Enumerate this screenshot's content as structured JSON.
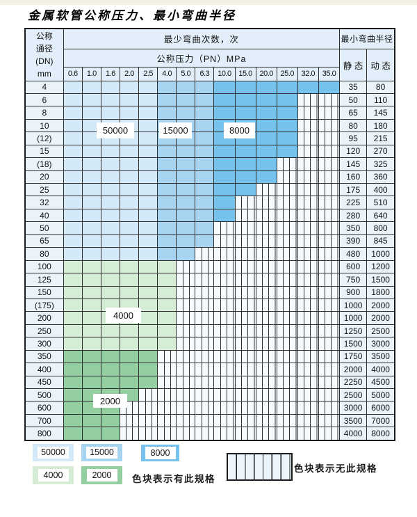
{
  "page": {
    "title": "金属软管公称压力、最小弯曲半径"
  },
  "table": {
    "dn_header": [
      "公称",
      "通径",
      "(DN)",
      "mm"
    ],
    "cycles_header": "最少弯曲次数，次",
    "pressure_header": "公称压力（PN）MPa",
    "radius_header": "最小弯曲半径",
    "static_header": "静 态",
    "dynamic_header": "动 态",
    "pressure_columns": [
      "0.6",
      "1.0",
      "1.6",
      "2.0",
      "2.5",
      "4.0",
      "5.0",
      "6.3",
      "10.0",
      "15.0",
      "20.0",
      "25.0",
      "32.0",
      "35.0"
    ],
    "blue_column_cycles": [
      "50000",
      "50000",
      "50000",
      "50000",
      "50000",
      "15000",
      "15000",
      "15000",
      "8000",
      "8000",
      "8000",
      "8000",
      "8000",
      "8000"
    ],
    "rows": [
      {
        "dn": "4",
        "colored_columns": 14,
        "cycles_group": "blue",
        "static": "35",
        "dynamic": "80"
      },
      {
        "dn": "6",
        "colored_columns": 12,
        "cycles_group": "blue",
        "static": "50",
        "dynamic": "110"
      },
      {
        "dn": "8",
        "colored_columns": 12,
        "cycles_group": "blue",
        "static": "65",
        "dynamic": "145"
      },
      {
        "dn": "10",
        "colored_columns": 12,
        "cycles_group": "blue",
        "static": "80",
        "dynamic": "180"
      },
      {
        "dn": "(12)",
        "colored_columns": 12,
        "cycles_group": "blue",
        "static": "95",
        "dynamic": "215"
      },
      {
        "dn": "15",
        "colored_columns": 12,
        "cycles_group": "blue",
        "static": "120",
        "dynamic": "270"
      },
      {
        "dn": "(18)",
        "colored_columns": 11,
        "cycles_group": "blue",
        "static": "145",
        "dynamic": "325"
      },
      {
        "dn": "20",
        "colored_columns": 11,
        "cycles_group": "blue",
        "static": "160",
        "dynamic": "360"
      },
      {
        "dn": "25",
        "colored_columns": 10,
        "cycles_group": "blue",
        "static": "175",
        "dynamic": "400"
      },
      {
        "dn": "32",
        "colored_columns": 9,
        "cycles_group": "blue",
        "static": "225",
        "dynamic": "510"
      },
      {
        "dn": "40",
        "colored_columns": 9,
        "cycles_group": "blue",
        "static": "280",
        "dynamic": "640"
      },
      {
        "dn": "50",
        "colored_columns": 8,
        "cycles_group": "blue",
        "static": "350",
        "dynamic": "800"
      },
      {
        "dn": "65",
        "colored_columns": 8,
        "cycles_group": "blue",
        "static": "390",
        "dynamic": "845"
      },
      {
        "dn": "80",
        "colored_columns": 7,
        "cycles_group": "blue",
        "static": "480",
        "dynamic": "1000"
      },
      {
        "dn": "100",
        "colored_columns": 6,
        "cycles_group": "4000",
        "static": "600",
        "dynamic": "1200"
      },
      {
        "dn": "125",
        "colored_columns": 6,
        "cycles_group": "4000",
        "static": "750",
        "dynamic": "1500"
      },
      {
        "dn": "150",
        "colored_columns": 6,
        "cycles_group": "4000",
        "static": "900",
        "dynamic": "1800"
      },
      {
        "dn": "(175)",
        "colored_columns": 6,
        "cycles_group": "4000",
        "static": "1000",
        "dynamic": "2000"
      },
      {
        "dn": "200",
        "colored_columns": 6,
        "cycles_group": "4000",
        "static": "1000",
        "dynamic": "2000"
      },
      {
        "dn": "250",
        "colored_columns": 6,
        "cycles_group": "4000",
        "static": "1250",
        "dynamic": "2500"
      },
      {
        "dn": "300",
        "colored_columns": 6,
        "cycles_group": "4000",
        "static": "1500",
        "dynamic": "3000"
      },
      {
        "dn": "350",
        "colored_columns": 5,
        "cycles_group": "2000",
        "static": "1750",
        "dynamic": "3500"
      },
      {
        "dn": "400",
        "colored_columns": 5,
        "cycles_group": "2000",
        "static": "2000",
        "dynamic": "4000"
      },
      {
        "dn": "450",
        "colored_columns": 5,
        "cycles_group": "2000",
        "static": "2250",
        "dynamic": "4500"
      },
      {
        "dn": "500",
        "colored_columns": 4,
        "cycles_group": "2000",
        "static": "2500",
        "dynamic": "5000"
      },
      {
        "dn": "600",
        "colored_columns": 3,
        "cycles_group": "2000",
        "static": "3000",
        "dynamic": "6000"
      },
      {
        "dn": "700",
        "colored_columns": 3,
        "cycles_group": "2000",
        "static": "3500",
        "dynamic": "7000"
      },
      {
        "dn": "800",
        "colored_columns": 3,
        "cycles_group": "2000",
        "static": "4000",
        "dynamic": "8000"
      }
    ]
  },
  "overlay_labels": {
    "b50000": "50000",
    "b15000": "15000",
    "b8000": "8000",
    "g4000": "4000",
    "g2000": "2000"
  },
  "legend": {
    "swatches": [
      {
        "value": "50000"
      },
      {
        "value": "15000"
      },
      {
        "value": "8000"
      },
      {
        "value": "4000"
      },
      {
        "value": "2000"
      }
    ],
    "has_spec_label": "色块表示有此规格",
    "no_spec_label": "色块表示无此规格"
  },
  "colors": {
    "cycles_50000": "#d3e9f7",
    "cycles_15000": "#a7d5f1",
    "cycles_8000": "#75c2ec",
    "cycles_4000": "#d5ecd5",
    "cycles_2000": "#93cfa0",
    "hatch_bg": "#f5fafd",
    "grid_line": "#2e2e2e",
    "header_bg": "#e2eef9",
    "label_cell_bg": "#eaf3fa"
  }
}
